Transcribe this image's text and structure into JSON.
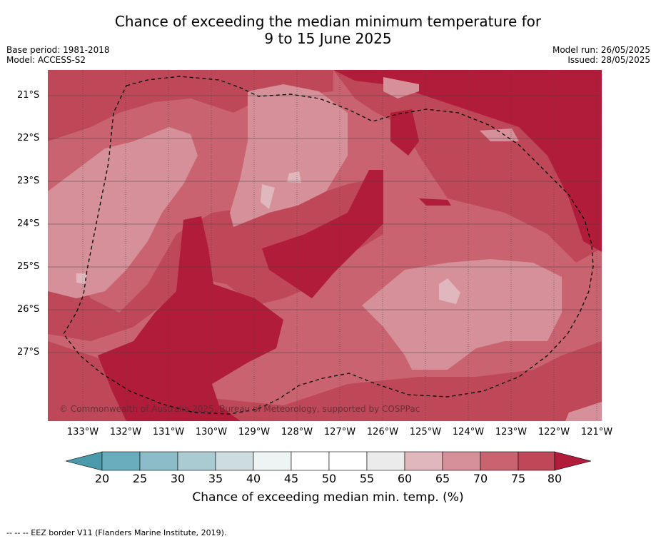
{
  "title_line1": "Chance of exceeding the median minimum temperature for",
  "title_line2": "9 to 15 June 2025",
  "base_period": "Base period: 1981-2018",
  "model": "Model: ACCESS-S2",
  "model_run": "Model run: 26/05/2025",
  "issued": "Issued: 28/05/2025",
  "copyright": "© Commonwealth of Australia 2025, Bureau of Meteorology, supported by COSPPac",
  "footer": "--  --  -- EEZ border V11 (Flanders Marine Institute, 2019).",
  "lat_labels": [
    "21°S",
    "22°S",
    "23°S",
    "24°S",
    "25°S",
    "26°S",
    "27°S"
  ],
  "lon_labels": [
    "133°W",
    "132°W",
    "131°W",
    "130°W",
    "129°W",
    "128°W",
    "127°W",
    "126°W",
    "125°W",
    "124°W",
    "123°W",
    "122°W",
    "121°W"
  ],
  "colorbar": {
    "title": "Chance of exceeding median min. temp. (%)",
    "ticks": [
      "20",
      "25",
      "30",
      "35",
      "40",
      "45",
      "50",
      "55",
      "60",
      "65",
      "70",
      "75",
      "80"
    ],
    "colors": {
      "below_20": "#4b9aab",
      "20_25": "#6aaebd",
      "25_30": "#8cbcc7",
      "30_35": "#a9cbd1",
      "35_40": "#cddcdf",
      "40_45": "#eef3f4",
      "45_50": "#ffffff",
      "50_55": "#ffffff",
      "55_60": "#ebebeb",
      "60_65": "#e0b7bc",
      "65_70": "#d6909a",
      "70_75": "#c9636f",
      "75_80": "#bf4858",
      "above_80": "#b11c3a"
    }
  }
}
